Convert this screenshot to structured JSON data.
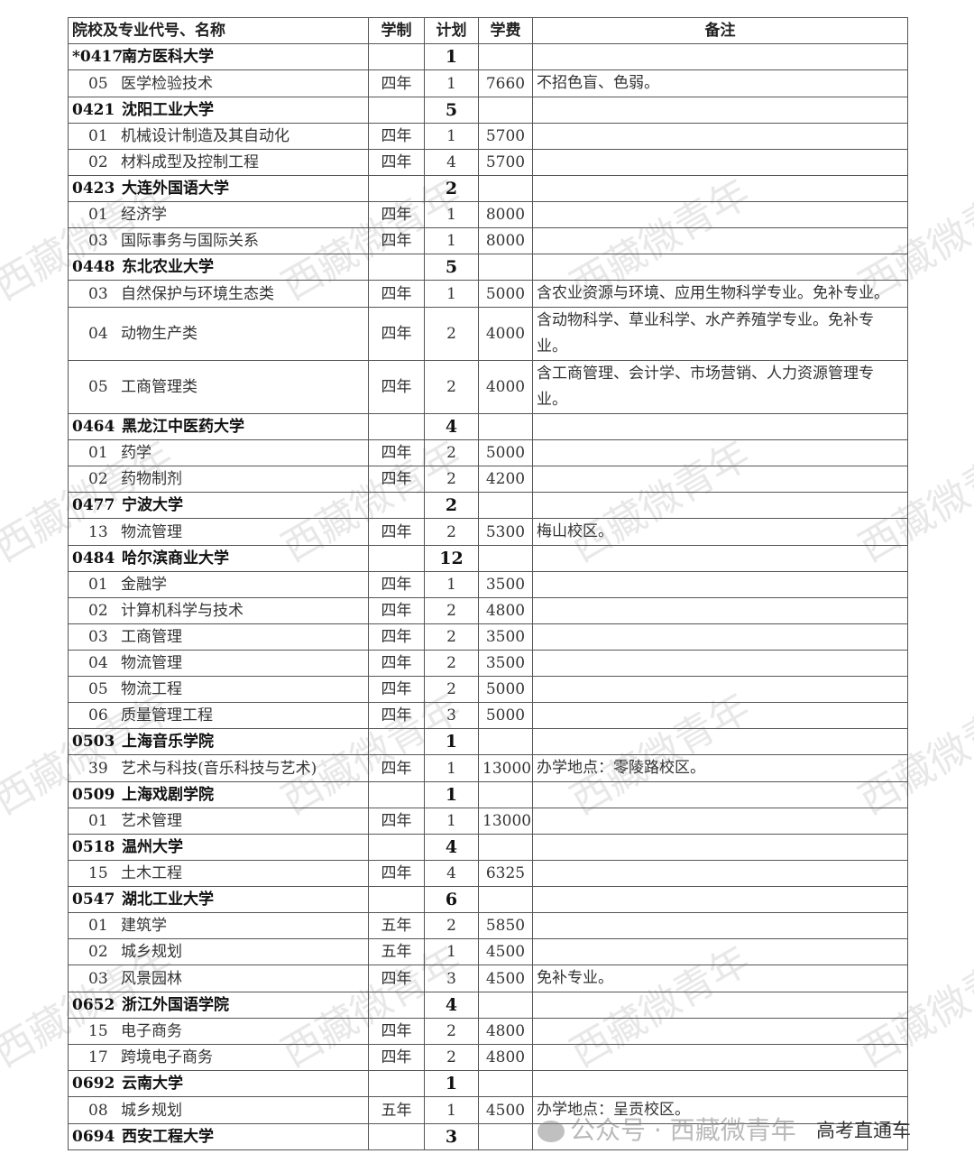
{
  "header": {
    "name": "院校及专业代号、名称",
    "duration": "学制",
    "plan": "计划",
    "fee": "学费",
    "note": "备注"
  },
  "rows": [
    {
      "type": "school",
      "code": "*0417",
      "name": "南方医科大学",
      "plan": "1"
    },
    {
      "type": "major",
      "code": "05",
      "name": "医学检验技术",
      "duration": "四年",
      "plan": "1",
      "fee": "7660",
      "note": "不招色盲、色弱。"
    },
    {
      "type": "school",
      "code": "0421",
      "name": "沈阳工业大学",
      "plan": "5"
    },
    {
      "type": "major",
      "code": "01",
      "name": "机械设计制造及其自动化",
      "duration": "四年",
      "plan": "1",
      "fee": "5700"
    },
    {
      "type": "major",
      "code": "02",
      "name": "材料成型及控制工程",
      "duration": "四年",
      "plan": "4",
      "fee": "5700"
    },
    {
      "type": "school",
      "code": "0423",
      "name": "大连外国语大学",
      "plan": "2"
    },
    {
      "type": "major",
      "code": "01",
      "name": "经济学",
      "duration": "四年",
      "plan": "1",
      "fee": "8000"
    },
    {
      "type": "major",
      "code": "03",
      "name": "国际事务与国际关系",
      "duration": "四年",
      "plan": "1",
      "fee": "8000"
    },
    {
      "type": "school",
      "code": "0448",
      "name": "东北农业大学",
      "plan": "5"
    },
    {
      "type": "major",
      "code": "03",
      "name": "自然保护与环境生态类",
      "duration": "四年",
      "plan": "1",
      "fee": "5000",
      "note": "含农业资源与环境、应用生物科学专业。免补专业。"
    },
    {
      "type": "major",
      "code": "04",
      "name": "动物生产类",
      "duration": "四年",
      "plan": "2",
      "fee": "4000",
      "note": "含动物科学、草业科学、水产养殖学专业。免补专业。"
    },
    {
      "type": "major",
      "code": "05",
      "name": "工商管理类",
      "duration": "四年",
      "plan": "2",
      "fee": "4000",
      "note": "含工商管理、会计学、市场营销、人力资源管理专业。"
    },
    {
      "type": "school",
      "code": "0464",
      "name": "黑龙江中医药大学",
      "plan": "4"
    },
    {
      "type": "major",
      "code": "01",
      "name": "药学",
      "duration": "四年",
      "plan": "2",
      "fee": "5000"
    },
    {
      "type": "major",
      "code": "02",
      "name": "药物制剂",
      "duration": "四年",
      "plan": "2",
      "fee": "4200"
    },
    {
      "type": "school",
      "code": "0477",
      "name": "宁波大学",
      "plan": "2"
    },
    {
      "type": "major",
      "code": "13",
      "name": "物流管理",
      "duration": "四年",
      "plan": "2",
      "fee": "5300",
      "note": "梅山校区。"
    },
    {
      "type": "school",
      "code": "0484",
      "name": "哈尔滨商业大学",
      "plan": "12"
    },
    {
      "type": "major",
      "code": "01",
      "name": "金融学",
      "duration": "四年",
      "plan": "1",
      "fee": "3500"
    },
    {
      "type": "major",
      "code": "02",
      "name": "计算机科学与技术",
      "duration": "四年",
      "plan": "2",
      "fee": "4800"
    },
    {
      "type": "major",
      "code": "03",
      "name": "工商管理",
      "duration": "四年",
      "plan": "2",
      "fee": "3500"
    },
    {
      "type": "major",
      "code": "04",
      "name": "物流管理",
      "duration": "四年",
      "plan": "2",
      "fee": "3500"
    },
    {
      "type": "major",
      "code": "05",
      "name": "物流工程",
      "duration": "四年",
      "plan": "2",
      "fee": "5000"
    },
    {
      "type": "major",
      "code": "06",
      "name": "质量管理工程",
      "duration": "四年",
      "plan": "3",
      "fee": "5000"
    },
    {
      "type": "school",
      "code": "0503",
      "name": "上海音乐学院",
      "plan": "1"
    },
    {
      "type": "major",
      "code": "39",
      "name": "艺术与科技(音乐科技与艺术)",
      "duration": "四年",
      "plan": "1",
      "fee": "13000",
      "note": "办学地点：零陵路校区。"
    },
    {
      "type": "school",
      "code": "0509",
      "name": "上海戏剧学院",
      "plan": "1"
    },
    {
      "type": "major",
      "code": "01",
      "name": "艺术管理",
      "duration": "四年",
      "plan": "1",
      "fee": "13000"
    },
    {
      "type": "school",
      "code": "0518",
      "name": "温州大学",
      "plan": "4"
    },
    {
      "type": "major",
      "code": "15",
      "name": "土木工程",
      "duration": "四年",
      "plan": "4",
      "fee": "6325"
    },
    {
      "type": "school",
      "code": "0547",
      "name": "湖北工业大学",
      "plan": "6"
    },
    {
      "type": "major",
      "code": "01",
      "name": "建筑学",
      "duration": "五年",
      "plan": "2",
      "fee": "5850"
    },
    {
      "type": "major",
      "code": "02",
      "name": "城乡规划",
      "duration": "五年",
      "plan": "1",
      "fee": "4500"
    },
    {
      "type": "major",
      "code": "03",
      "name": "风景园林",
      "duration": "四年",
      "plan": "3",
      "fee": "4500",
      "note": "免补专业。"
    },
    {
      "type": "school",
      "code": "0652",
      "name": "浙江外国语学院",
      "plan": "4"
    },
    {
      "type": "major",
      "code": "15",
      "name": "电子商务",
      "duration": "四年",
      "plan": "2",
      "fee": "4800"
    },
    {
      "type": "major",
      "code": "17",
      "name": "跨境电子商务",
      "duration": "四年",
      "plan": "2",
      "fee": "4800"
    },
    {
      "type": "school",
      "code": "0692",
      "name": "云南大学",
      "plan": "1"
    },
    {
      "type": "major",
      "code": "08",
      "name": "城乡规划",
      "duration": "五年",
      "plan": "1",
      "fee": "4500",
      "note": "办学地点：呈贡校区。"
    },
    {
      "type": "school",
      "code": "0694",
      "name": "西安工程大学",
      "plan": "3"
    }
  ],
  "watermark": "西藏微青年",
  "footer": {
    "account": "公众号 · 西藏微青年",
    "brand": "高考直通车"
  }
}
